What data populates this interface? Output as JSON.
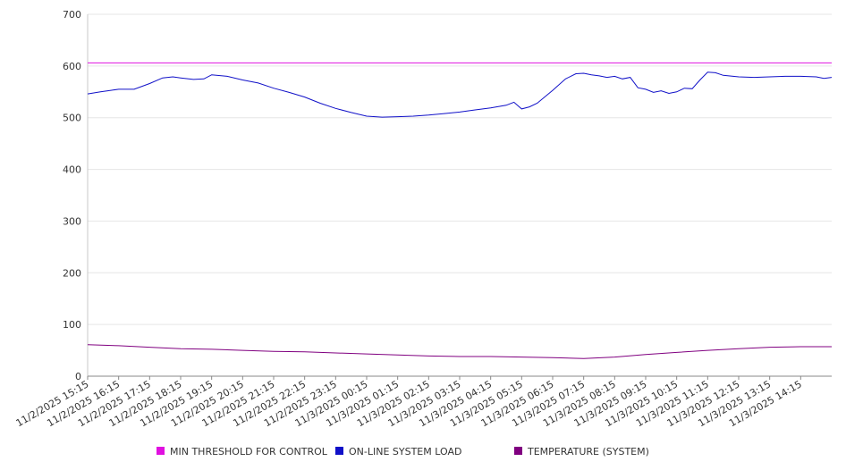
{
  "chart_data": {
    "type": "line",
    "title": "",
    "xlabel": "",
    "ylabel": "",
    "ylim": [
      0,
      700
    ],
    "yticks": [
      0,
      100,
      200,
      300,
      400,
      500,
      600,
      700
    ],
    "grid": true,
    "legend_position": "bottom",
    "categories": [
      "11/2/2025 15:15",
      "11/2/2025 16:15",
      "11/2/2025 17:15",
      "11/2/2025 18:15",
      "11/2/2025 19:15",
      "11/2/2025 20:15",
      "11/2/2025 21:15",
      "11/2/2025 22:15",
      "11/2/2025 23:15",
      "11/3/2025 00:15",
      "11/3/2025 01:15",
      "11/3/2025 02:15",
      "11/3/2025 03:15",
      "11/3/2025 04:15",
      "11/3/2025 05:15",
      "11/3/2025 06:15",
      "11/3/2025 07:15",
      "11/3/2025 08:15",
      "11/3/2025 09:15",
      "11/3/2025 10:15",
      "11/3/2025 11:15",
      "11/3/2025 12:15",
      "11/3/2025 13:15",
      "11/3/2025 14:15"
    ],
    "series": [
      {
        "name": "MIN THRESHOLD FOR CONTROL",
        "color": "#e010e0",
        "x": [
          "11/2/2025 15:15",
          "11/3/2025 15:15"
        ],
        "values": [
          606,
          606
        ]
      },
      {
        "name": "ON-LINE SYSTEM LOAD",
        "color": "#1010c8",
        "x": [
          "11/2/2025 15:15",
          "11/2/2025 15:40",
          "11/2/2025 16:00",
          "11/2/2025 16:15",
          "11/2/2025 16:45",
          "11/2/2025 17:15",
          "11/2/2025 17:40",
          "11/2/2025 18:00",
          "11/2/2025 18:15",
          "11/2/2025 18:40",
          "11/2/2025 19:00",
          "11/2/2025 19:15",
          "11/2/2025 19:45",
          "11/2/2025 20:15",
          "11/2/2025 20:45",
          "11/2/2025 21:15",
          "11/2/2025 21:45",
          "11/2/2025 22:15",
          "11/2/2025 22:45",
          "11/2/2025 23:15",
          "11/2/2025 23:45",
          "11/3/2025 00:15",
          "11/3/2025 00:45",
          "11/3/2025 01:15",
          "11/3/2025 01:45",
          "11/3/2025 02:15",
          "11/3/2025 02:45",
          "11/3/2025 03:15",
          "11/3/2025 03:45",
          "11/3/2025 04:15",
          "11/3/2025 04:45",
          "11/3/2025 05:00",
          "11/3/2025 05:15",
          "11/3/2025 05:30",
          "11/3/2025 05:45",
          "11/3/2025 06:15",
          "11/3/2025 06:40",
          "11/3/2025 07:00",
          "11/3/2025 07:15",
          "11/3/2025 07:30",
          "11/3/2025 07:45",
          "11/3/2025 08:00",
          "11/3/2025 08:15",
          "11/3/2025 08:30",
          "11/3/2025 08:45",
          "11/3/2025 09:00",
          "11/3/2025 09:15",
          "11/3/2025 09:30",
          "11/3/2025 09:45",
          "11/3/2025 10:00",
          "11/3/2025 10:15",
          "11/3/2025 10:30",
          "11/3/2025 10:45",
          "11/3/2025 11:00",
          "11/3/2025 11:15",
          "11/3/2025 11:30",
          "11/3/2025 11:45",
          "11/3/2025 12:15",
          "11/3/2025 12:45",
          "11/3/2025 13:15",
          "11/3/2025 13:45",
          "11/3/2025 14:15",
          "11/3/2025 14:45",
          "11/3/2025 15:00",
          "11/3/2025 15:15"
        ],
        "values": [
          546,
          550,
          553,
          555,
          555,
          566,
          577,
          579,
          577,
          574,
          575,
          583,
          580,
          573,
          567,
          557,
          549,
          540,
          528,
          518,
          510,
          503,
          501,
          502,
          503,
          505,
          508,
          511,
          515,
          519,
          524,
          530,
          517,
          521,
          528,
          553,
          575,
          585,
          586,
          583,
          581,
          578,
          580,
          575,
          578,
          558,
          555,
          549,
          552,
          547,
          550,
          557,
          556,
          573,
          588,
          587,
          582,
          579,
          578,
          579,
          580,
          580,
          579,
          576,
          578
        ]
      },
      {
        "name": "TEMPERATURE (SYSTEM)",
        "color": "#800080",
        "x": [
          "11/2/2025 15:15",
          "11/2/2025 16:15",
          "11/2/2025 17:15",
          "11/2/2025 18:15",
          "11/2/2025 19:15",
          "11/2/2025 20:15",
          "11/2/2025 21:15",
          "11/2/2025 22:15",
          "11/2/2025 23:15",
          "11/3/2025 00:15",
          "11/3/2025 01:15",
          "11/3/2025 02:15",
          "11/3/2025 03:15",
          "11/3/2025 04:15",
          "11/3/2025 05:15",
          "11/3/2025 06:15",
          "11/3/2025 07:15",
          "11/3/2025 08:15",
          "11/3/2025 09:15",
          "11/3/2025 10:15",
          "11/3/2025 11:15",
          "11/3/2025 12:15",
          "11/3/2025 13:15",
          "11/3/2025 14:15",
          "11/3/2025 15:15"
        ],
        "values": [
          61,
          59,
          56,
          53,
          52,
          50,
          48,
          47,
          45,
          43,
          41,
          39,
          38,
          38,
          37,
          36,
          34,
          37,
          42,
          46,
          50,
          53,
          56,
          57,
          57
        ]
      }
    ]
  }
}
